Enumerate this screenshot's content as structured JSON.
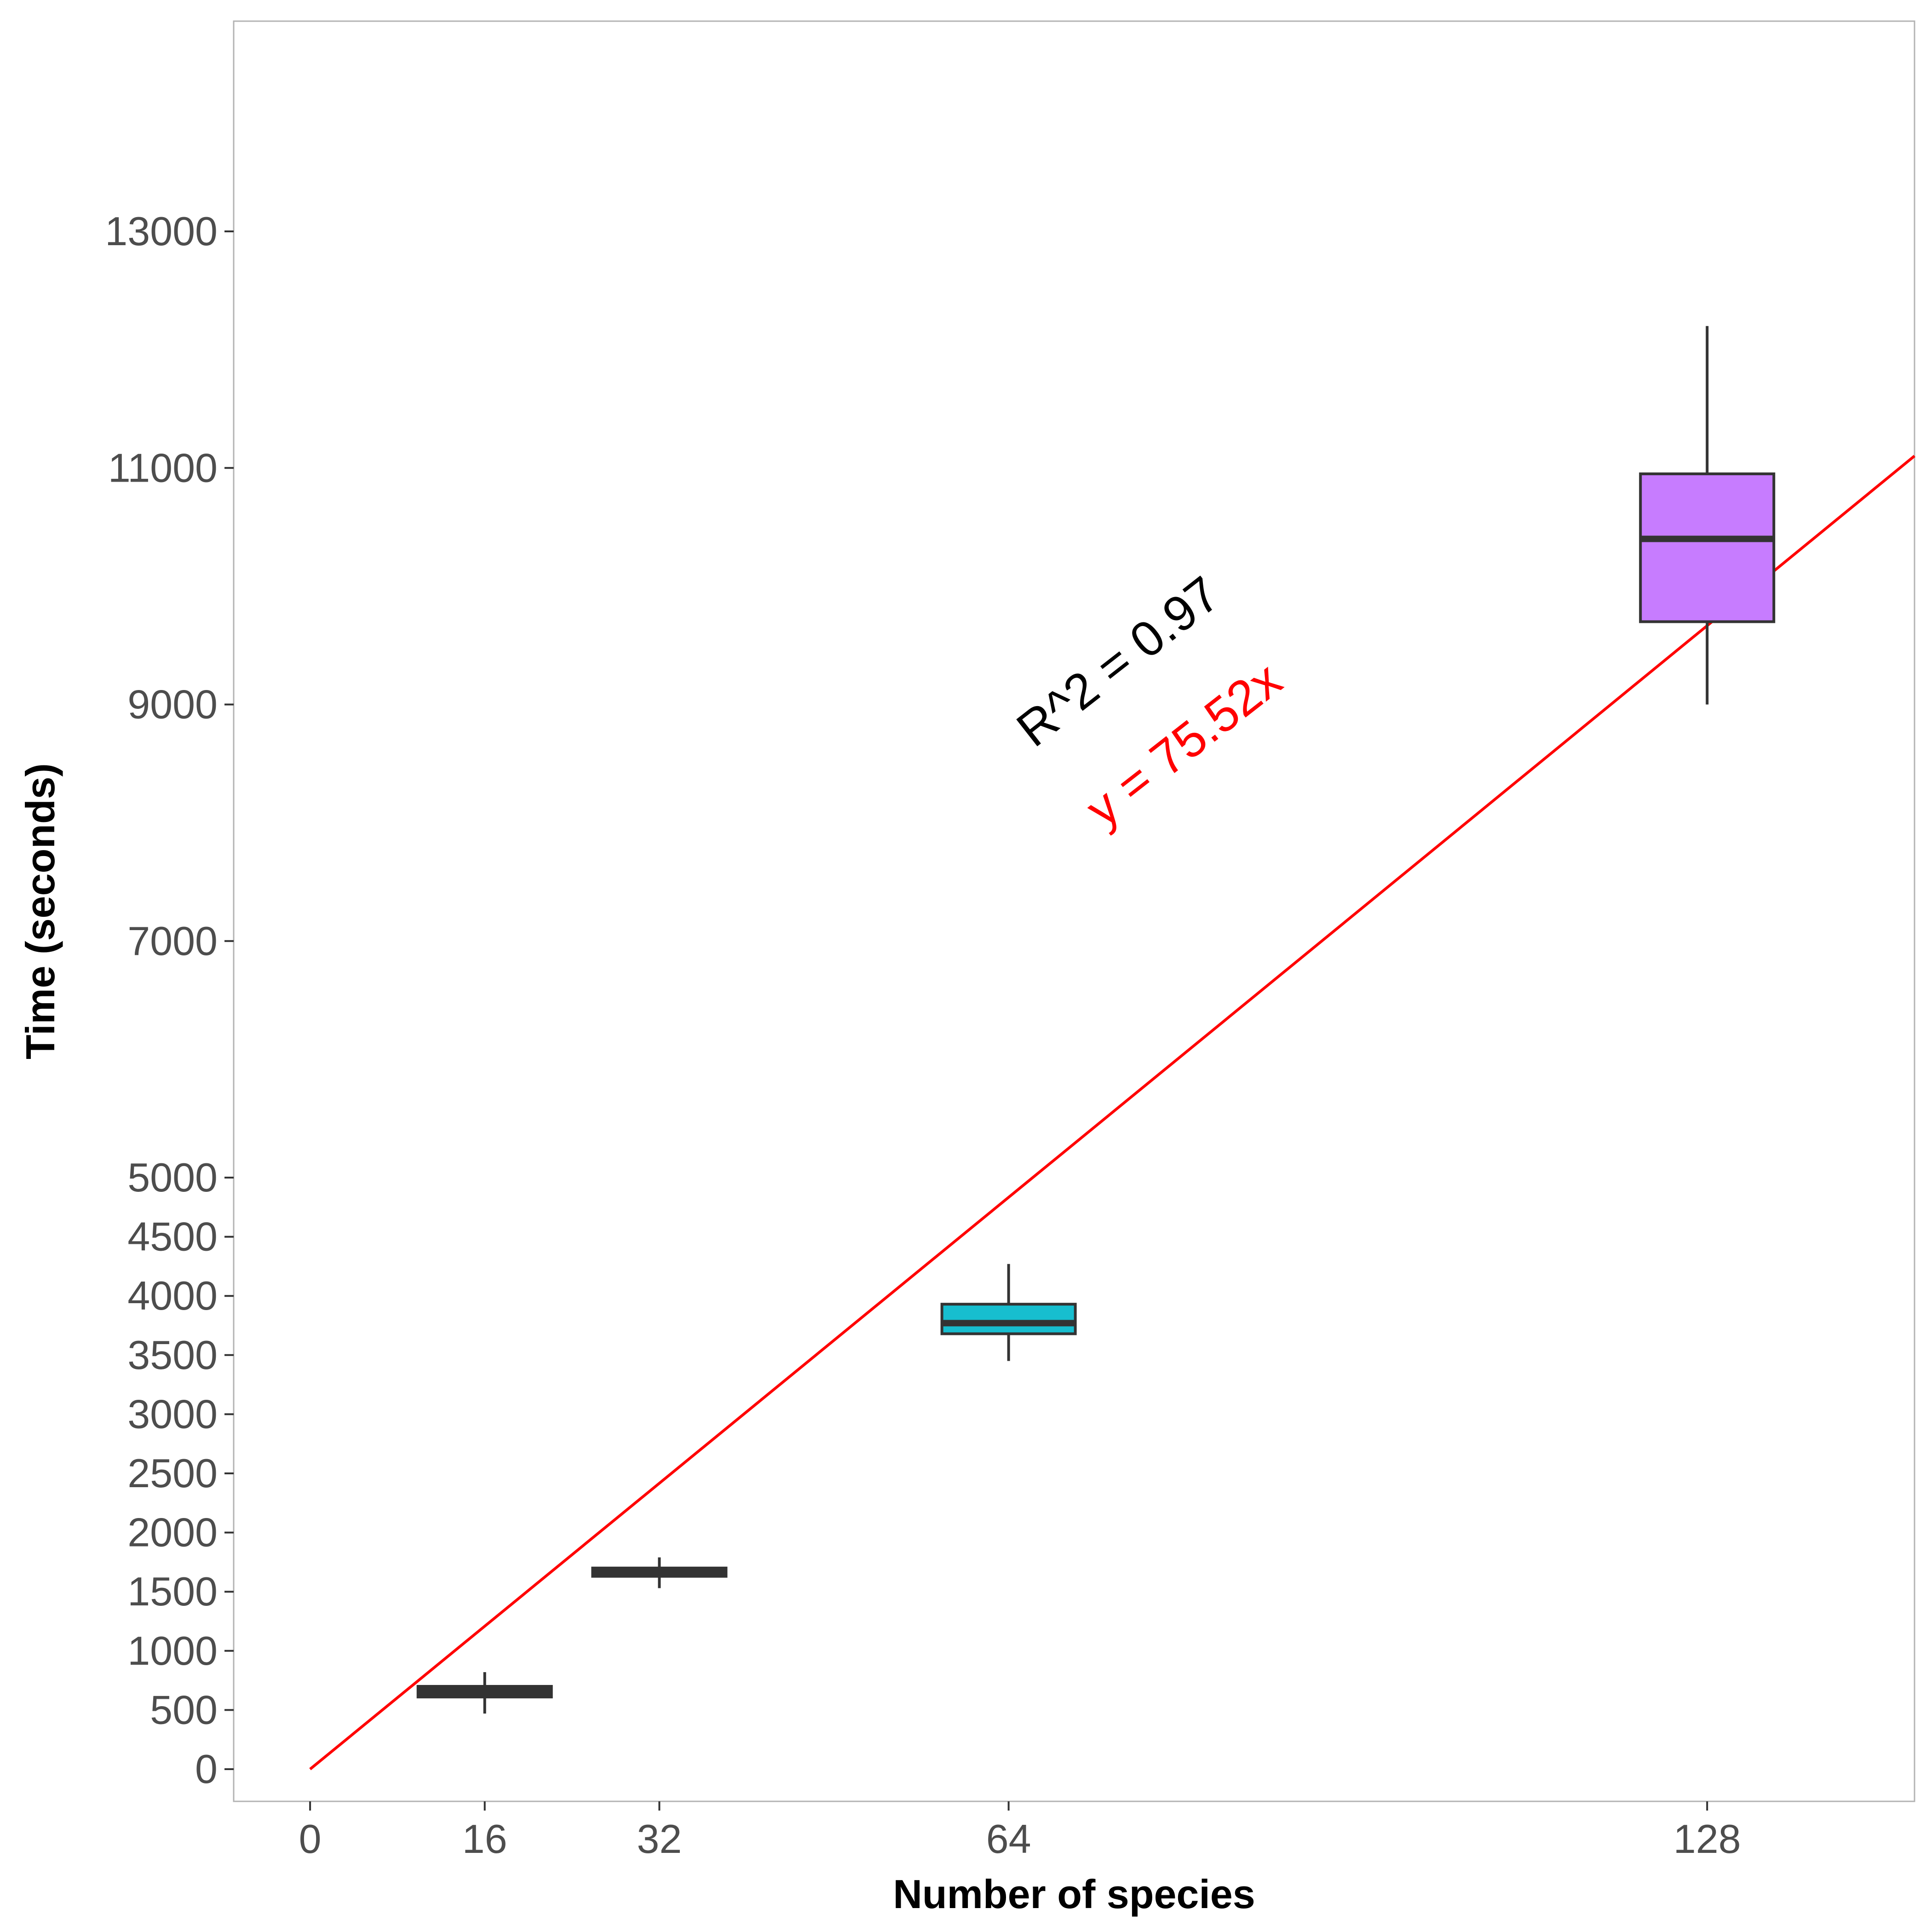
{
  "chart_data": {
    "type": "box",
    "xlabel": "Number of species",
    "ylabel": "Time (seconds)",
    "x_ticks": [
      0,
      16,
      32,
      64,
      128
    ],
    "y_ticks": [
      0,
      500,
      1000,
      1500,
      2000,
      2500,
      3000,
      3500,
      4000,
      4500,
      5000,
      7000,
      9000,
      11000,
      13000
    ],
    "xlim": [
      -7,
      147
    ],
    "ylim": [
      -250,
      14750
    ],
    "y_scale_breakpoint": 5000,
    "grid": false,
    "boxes": [
      {
        "x": 16,
        "min": 470,
        "q1": 610,
        "median": 660,
        "q3": 700,
        "max": 820,
        "fill": "#333333"
      },
      {
        "x": 32,
        "min": 1530,
        "q1": 1630,
        "median": 1660,
        "q3": 1700,
        "max": 1790,
        "fill": "#333333"
      },
      {
        "x": 64,
        "min": 3450,
        "q1": 3680,
        "median": 3770,
        "q3": 3930,
        "max": 4270,
        "fill": "#17becf"
      },
      {
        "x": 128,
        "min": 9000,
        "q1": 9700,
        "median": 10400,
        "q3": 10950,
        "max": 12200,
        "fill": "#c77cff"
      }
    ],
    "fit_line": {
      "slope": 75.52,
      "intercept": 0,
      "x_from": 0,
      "x_to": 147,
      "color": "#ff0000"
    },
    "annotations": [
      {
        "text": "R^2 = 0.97",
        "x": 75,
        "y": 9250,
        "color": "#000000",
        "rotate": -38
      },
      {
        "text": "y = 75.52x",
        "x": 81,
        "y": 8550,
        "color": "#ff0000",
        "rotate": -38
      }
    ]
  }
}
